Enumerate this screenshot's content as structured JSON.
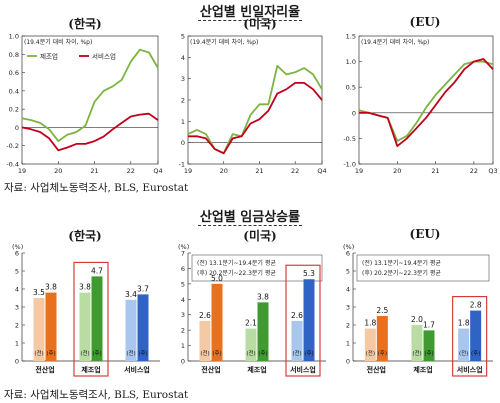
{
  "line_section": {
    "title": "산업별 빈일자리율",
    "source": "자료: 사업체노동력조사, BLS, Eurostat"
  },
  "bar_section": {
    "title": "산업별 임금상승률",
    "source": "자료: 사업체노동력조사, BLS, Eurostat"
  },
  "colors": {
    "manufacturing": "#7cb342",
    "services": "#c0001a",
    "prev_kr": "#f4c9a3",
    "post_kr": "#e8711f",
    "prev_mfg": "#b9dca3",
    "post_mfg": "#3f9a2f",
    "prev_svc": "#a9c6ee",
    "post_svc": "#2f63c4",
    "highlight_box": "#d2302c"
  },
  "chart_data": [
    {
      "type": "line",
      "panel_title": "(한국)",
      "unit_label": "(19.4분기 대비 차이, %p)",
      "legend": [
        "제조업",
        "서비스업"
      ],
      "x_ticks": [
        "19",
        "20",
        "21",
        "22",
        "Q4"
      ],
      "x_tick_pos": [
        0,
        4,
        8,
        12,
        15
      ],
      "x_range": [
        0,
        15
      ],
      "y_ticks": [
        "1.0",
        "0.8",
        "0.6",
        "0.4",
        "0.2",
        "0",
        "-0.2",
        "-0.4"
      ],
      "ylim": [
        -0.4,
        1.0
      ],
      "series": [
        {
          "name": "제조업",
          "color_key": "manufacturing",
          "values": [
            0.1,
            0.08,
            0.05,
            -0.02,
            -0.15,
            -0.08,
            -0.05,
            0.02,
            0.28,
            0.4,
            0.45,
            0.52,
            0.72,
            0.85,
            0.82,
            0.65
          ]
        },
        {
          "name": "서비스업",
          "color_key": "services",
          "values": [
            0.0,
            -0.02,
            -0.05,
            -0.12,
            -0.25,
            -0.22,
            -0.18,
            -0.18,
            -0.15,
            -0.1,
            -0.02,
            0.05,
            0.12,
            0.14,
            0.15,
            0.08
          ]
        }
      ]
    },
    {
      "type": "line",
      "panel_title": "(미국)",
      "unit_label": "(19.4분기 대비 차이, %p)",
      "x_ticks": [
        "19",
        "20",
        "21",
        "22",
        "Q4"
      ],
      "x_tick_pos": [
        0,
        4,
        8,
        12,
        15
      ],
      "x_range": [
        0,
        15
      ],
      "y_ticks": [
        "5",
        "4",
        "3",
        "2",
        "1",
        "0",
        "-1"
      ],
      "ylim": [
        -1,
        5
      ],
      "series": [
        {
          "name": "제조업",
          "color_key": "manufacturing",
          "values": [
            0.4,
            0.6,
            0.4,
            -0.3,
            -0.5,
            0.4,
            0.3,
            1.3,
            1.8,
            1.8,
            3.6,
            3.2,
            3.3,
            3.5,
            3.2,
            2.5
          ]
        },
        {
          "name": "서비스업",
          "color_key": "services",
          "values": [
            0.3,
            0.3,
            0.2,
            -0.3,
            -0.5,
            0.2,
            0.3,
            0.9,
            1.1,
            1.5,
            2.3,
            2.5,
            2.8,
            2.8,
            2.5,
            2.0
          ]
        }
      ]
    },
    {
      "type": "line",
      "panel_title": "(EU)",
      "unit_label": "(19.4분기 대비 차이, %p)",
      "x_ticks": [
        "19",
        "20",
        "21",
        "22",
        "Q3"
      ],
      "x_tick_pos": [
        0,
        4,
        8,
        12,
        14
      ],
      "x_range": [
        0,
        14
      ],
      "y_ticks": [
        "1.5",
        "1.0",
        "0.5",
        "0",
        "-0.5",
        "-1.0"
      ],
      "ylim": [
        -1.0,
        1.5
      ],
      "series": [
        {
          "name": "제조업",
          "color_key": "manufacturing",
          "values": [
            0.05,
            0.0,
            -0.05,
            -0.1,
            -0.55,
            -0.45,
            -0.2,
            0.1,
            0.35,
            0.55,
            0.75,
            0.95,
            1.0,
            1.0,
            0.95
          ]
        },
        {
          "name": "서비스업",
          "color_key": "services",
          "values": [
            0.0,
            0.0,
            -0.05,
            -0.1,
            -0.65,
            -0.5,
            -0.3,
            -0.1,
            0.15,
            0.4,
            0.6,
            0.85,
            1.0,
            1.05,
            0.85
          ]
        }
      ]
    },
    {
      "type": "bar",
      "panel_title": "(한국)",
      "unit_label": "(%)",
      "y_ticks": [
        "6",
        "5",
        "4",
        "3",
        "2",
        "1",
        "0"
      ],
      "ylim": [
        0,
        6
      ],
      "period_labels": [
        "(전)",
        "(후)"
      ],
      "categories": [
        "전산업",
        "제조업",
        "서비스업"
      ],
      "highlight": "제조업",
      "series": [
        {
          "name": "(전)",
          "values": [
            3.5,
            3.8,
            3.4
          ],
          "value_labels": [
            "3.5",
            "3.8",
            "3.4"
          ]
        },
        {
          "name": "(후)",
          "values": [
            3.8,
            4.7,
            3.7
          ],
          "value_labels": [
            "3.8",
            "4.7",
            "3.7"
          ]
        }
      ]
    },
    {
      "type": "bar",
      "panel_title": "(미국)",
      "unit_label": "(%)",
      "legend_lines": [
        "(전) 13.1분기~19.4분기 평균",
        "(후) 20.2분기~22.3분기 평균"
      ],
      "y_ticks": [
        "7",
        "6",
        "5",
        "4",
        "3",
        "2",
        "1",
        "0"
      ],
      "ylim": [
        0,
        7
      ],
      "period_labels": [
        "(전)",
        "(후)"
      ],
      "categories": [
        "전산업",
        "제조업",
        "서비스업"
      ],
      "highlight": "서비스업",
      "series": [
        {
          "name": "(전)",
          "values": [
            2.6,
            2.1,
            2.6
          ],
          "value_labels": [
            "2.6",
            "2.1",
            "2.6"
          ]
        },
        {
          "name": "(후)",
          "values": [
            5.0,
            3.8,
            5.3
          ],
          "value_labels": [
            "5.0",
            "3.8",
            "5.3"
          ]
        }
      ]
    },
    {
      "type": "bar",
      "panel_title": "(EU)",
      "unit_label": "(%)",
      "legend_lines": [
        "(전) 13.1분기~19.4분기 평균",
        "(후) 20.2분기~22.3분기 평균"
      ],
      "y_ticks": [
        "6",
        "5",
        "4",
        "3",
        "2",
        "1",
        "0"
      ],
      "ylim": [
        0,
        6
      ],
      "period_labels": [
        "(전)",
        "(후)"
      ],
      "categories": [
        "전산업",
        "제조업",
        "서비스업"
      ],
      "highlight": "서비스업",
      "series": [
        {
          "name": "(전)",
          "values": [
            1.8,
            2.0,
            1.8
          ],
          "value_labels": [
            "1.8",
            "2.0",
            "1.8"
          ]
        },
        {
          "name": "(후)",
          "values": [
            2.5,
            1.7,
            2.8
          ],
          "value_labels": [
            "2.5",
            "1.7",
            "2.8"
          ]
        }
      ]
    }
  ]
}
